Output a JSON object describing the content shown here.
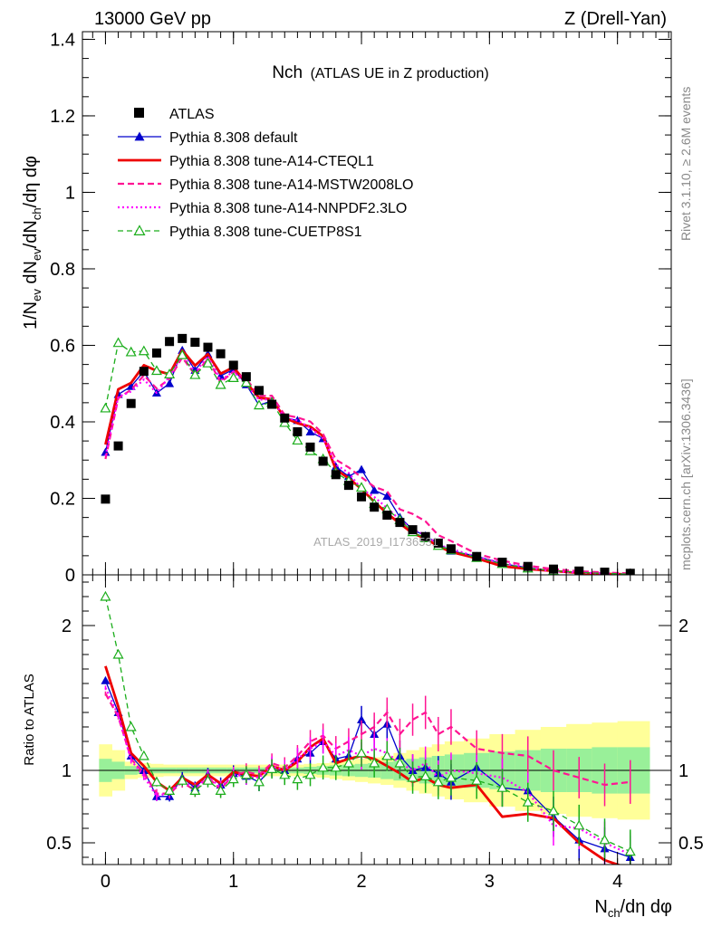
{
  "header": {
    "left": "13000 GeV pp",
    "right": "Z (Drell-Yan)"
  },
  "side_labels": {
    "rivet": "Rivet 3.1.10, ≥ 2.6M events",
    "mcplots": "mcplots.cern.ch [arXiv:1306.3436]"
  },
  "watermark": "ATLAS_2019_I1736531",
  "chart_data": {
    "type": "line",
    "title_main": "Nch",
    "title_sub": "(ATLAS UE in Z production)",
    "xlabel": "N_ch/dη dφ",
    "ylabel": "1/N_ev dN_ev/dN_ch/dη dφ",
    "ratio_ylabel": "Ratio to ATLAS",
    "xlim": [
      -0.18,
      4.42
    ],
    "ylim": [
      0,
      1.42
    ],
    "ratio_ylim": [
      0.35,
      2.35
    ],
    "x_ticks": [
      0,
      1,
      2,
      3,
      4
    ],
    "y_ticks": [
      0,
      0.2,
      0.4,
      0.6,
      0.8,
      1,
      1.2,
      1.4
    ],
    "y_tick_labels": [
      "0",
      "0.2",
      "0.4",
      "0.6",
      "0.8",
      "1",
      "1.2",
      "1.4"
    ],
    "ratio_ticks": [
      0.5,
      1,
      2
    ],
    "ratio_tick_labels": [
      "0.5",
      "1",
      "2"
    ],
    "x": [
      0.0,
      0.1,
      0.2,
      0.3,
      0.4,
      0.5,
      0.6,
      0.7,
      0.8,
      0.9,
      1.0,
      1.1,
      1.2,
      1.3,
      1.4,
      1.5,
      1.6,
      1.7,
      1.8,
      1.9,
      2.0,
      2.1,
      2.2,
      2.3,
      2.4,
      2.5,
      2.6,
      2.7,
      2.9,
      3.1,
      3.3,
      3.5,
      3.7,
      3.9,
      4.1
    ],
    "data": [
      0.198,
      0.337,
      0.448,
      0.532,
      0.58,
      0.61,
      0.618,
      0.608,
      0.595,
      0.578,
      0.548,
      0.518,
      0.482,
      0.446,
      0.41,
      0.374,
      0.334,
      0.297,
      0.262,
      0.234,
      0.204,
      0.177,
      0.156,
      0.137,
      0.118,
      0.1,
      0.083,
      0.068,
      0.048,
      0.033,
      0.022,
      0.015,
      0.01,
      0.007,
      0.004
    ],
    "band_yellow": [
      0.18,
      0.14,
      0.06,
      0.05,
      0.045,
      0.04,
      0.04,
      0.04,
      0.04,
      0.04,
      0.04,
      0.04,
      0.04,
      0.04,
      0.04,
      0.04,
      0.045,
      0.05,
      0.06,
      0.07,
      0.08,
      0.09,
      0.1,
      0.12,
      0.14,
      0.16,
      0.18,
      0.2,
      0.22,
      0.25,
      0.28,
      0.3,
      0.32,
      0.33,
      0.34
    ],
    "band_green": [
      0.08,
      0.06,
      0.03,
      0.025,
      0.02,
      0.02,
      0.02,
      0.02,
      0.02,
      0.02,
      0.02,
      0.02,
      0.02,
      0.02,
      0.02,
      0.02,
      0.025,
      0.03,
      0.035,
      0.04,
      0.045,
      0.05,
      0.06,
      0.07,
      0.08,
      0.09,
      0.1,
      0.11,
      0.12,
      0.13,
      0.14,
      0.15,
      0.15,
      0.16,
      0.16
    ],
    "series": [
      {
        "name": "ATLAS",
        "style": "data",
        "color": "#000000"
      },
      {
        "name": "Pythia 8.308 default",
        "style": "solid-triangle",
        "color": "#0000cc",
        "ratio": [
          1.62,
          1.4,
          1.1,
          1.0,
          0.82,
          0.82,
          0.95,
          0.88,
          0.97,
          0.9,
          0.98,
          0.96,
          0.92,
          1.02,
          1.0,
          1.08,
          1.12,
          1.2,
          1.08,
          1.1,
          1.35,
          1.25,
          1.32,
          1.1,
          1.0,
          1.02,
          0.98,
          0.92,
          1.02,
          0.88,
          0.86,
          0.68,
          0.52,
          0.46,
          0.4
        ]
      },
      {
        "name": "Pythia 8.308 tune-A14-CTEQL1",
        "style": "thick-solid",
        "color": "#ee0000",
        "ratio": [
          1.72,
          1.44,
          1.12,
          1.03,
          0.92,
          0.86,
          0.95,
          0.9,
          0.97,
          0.91,
          0.99,
          0.97,
          0.96,
          1.03,
          1.0,
          1.06,
          1.16,
          1.22,
          1.05,
          1.08,
          1.1,
          1.08,
          1.03,
          0.98,
          0.92,
          0.95,
          0.9,
          0.88,
          0.9,
          0.68,
          0.7,
          0.67,
          0.5,
          0.38,
          0.32
        ]
      },
      {
        "name": "Pythia 8.308 tune-A14-MSTW2008LO",
        "style": "dashed",
        "color": "#ff1493",
        "ratio": [
          1.53,
          1.37,
          1.08,
          0.98,
          0.84,
          0.84,
          0.92,
          0.86,
          0.95,
          0.87,
          0.97,
          0.99,
          0.97,
          1.05,
          1.02,
          1.1,
          1.2,
          1.24,
          1.15,
          1.2,
          1.25,
          1.3,
          1.4,
          1.25,
          1.35,
          1.4,
          1.25,
          1.3,
          1.15,
          1.12,
          1.1,
          1.0,
          0.95,
          0.9,
          0.92
        ]
      },
      {
        "name": "Pythia 8.308 tune-A14-NNPDF2.3LO",
        "style": "dotted",
        "color": "#ff00ff",
        "ratio": [
          1.57,
          1.38,
          1.07,
          0.96,
          0.82,
          0.85,
          0.93,
          0.87,
          0.96,
          0.88,
          0.97,
          0.96,
          0.95,
          1.03,
          1.0,
          1.08,
          1.15,
          1.2,
          1.1,
          1.14,
          1.1,
          1.15,
          1.12,
          1.05,
          1.0,
          1.05,
          0.95,
          1.0,
          0.98,
          0.95,
          0.85,
          0.62,
          0.6,
          0.5,
          0.42
        ]
      },
      {
        "name": "Pythia 8.308 tune-CUETP8S1",
        "style": "dashed-open-triangle",
        "color": "#1aad1a",
        "ratio": [
          2.2,
          1.8,
          1.3,
          1.1,
          0.92,
          0.86,
          0.93,
          0.86,
          0.93,
          0.86,
          0.94,
          0.97,
          0.92,
          1.01,
          0.97,
          0.94,
          0.97,
          1.02,
          1.02,
          1.05,
          1.12,
          1.05,
          1.1,
          1.05,
          0.95,
          0.96,
          0.92,
          0.95,
          0.93,
          0.88,
          0.78,
          0.72,
          0.62,
          0.52,
          0.44
        ]
      }
    ]
  }
}
